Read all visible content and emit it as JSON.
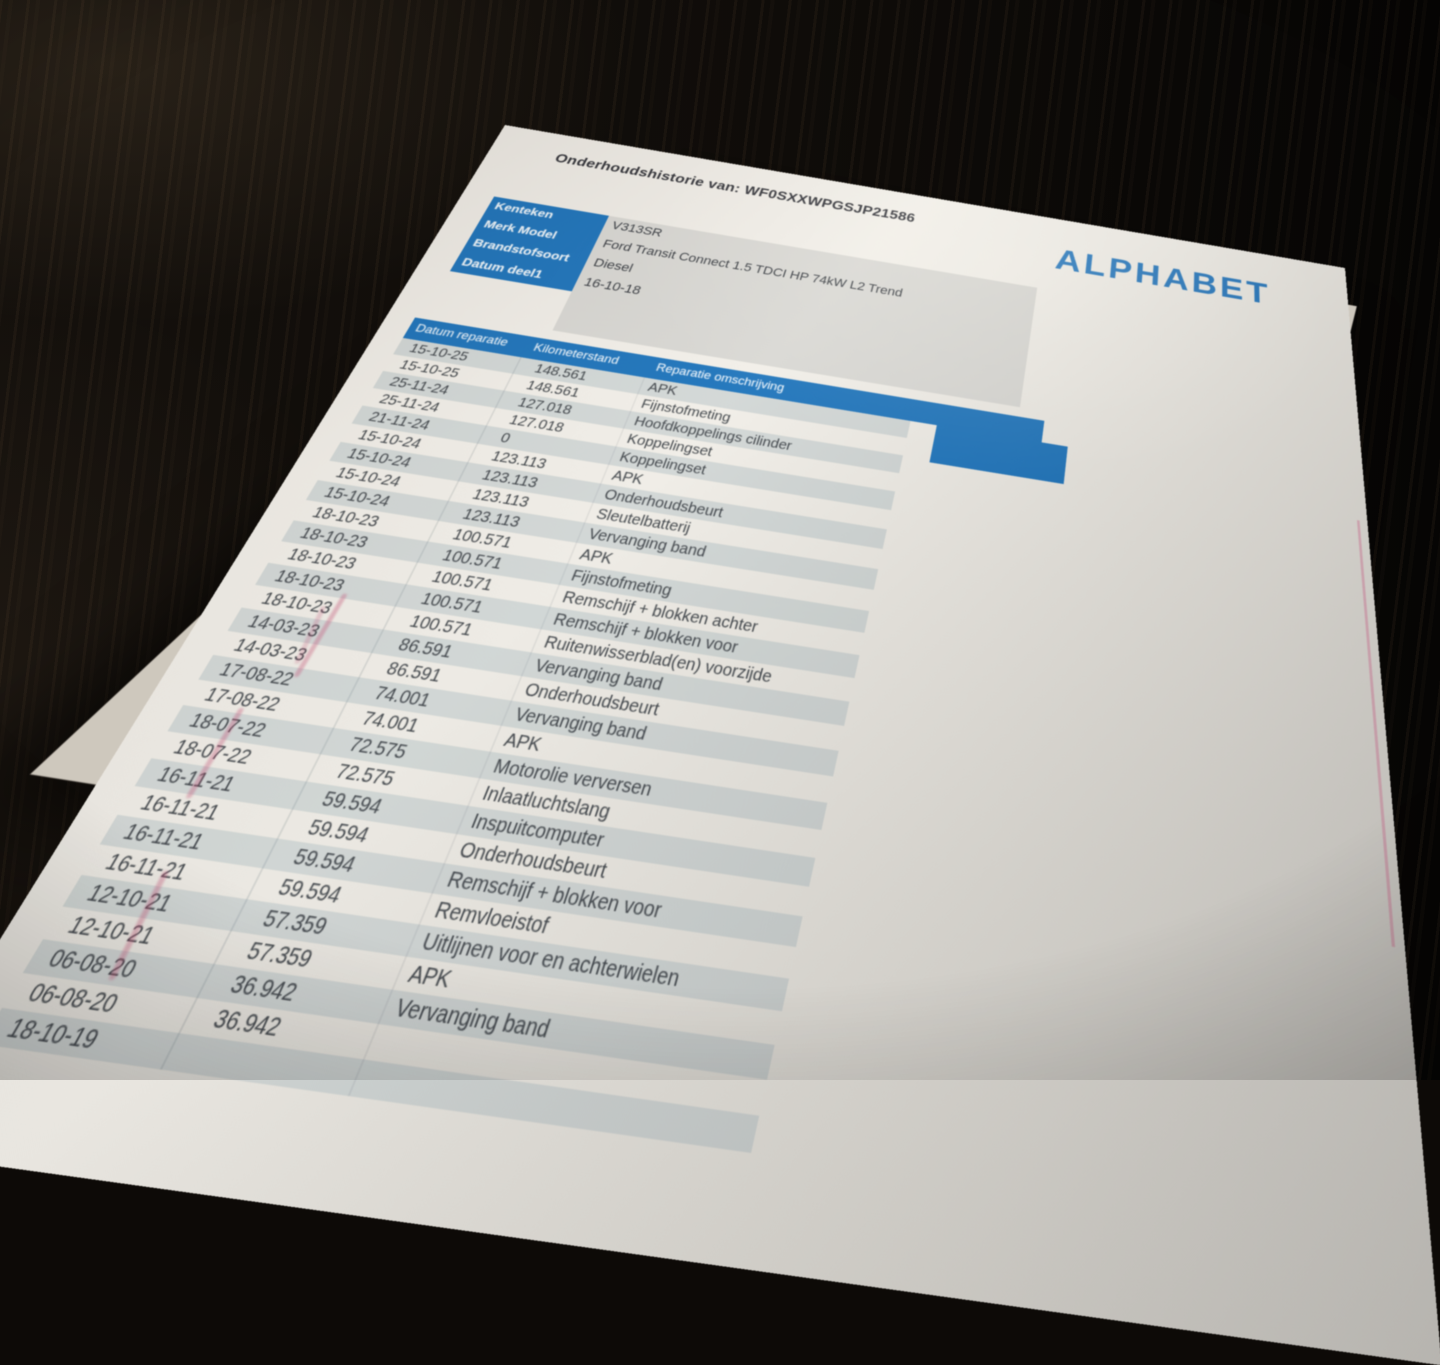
{
  "document": {
    "title": "Onderhoudshistorie van: WF0SXXWPGSJP21586",
    "brand_logo": "ALPHABET",
    "info_table": {
      "rows": [
        {
          "label": "Kenteken",
          "value": "V313SR"
        },
        {
          "label": "Merk Model",
          "value": "Ford Transit Connect 1.5 TDCI HP 74kW L2 Trend"
        },
        {
          "label": "Brandstofsoort",
          "value": "Diesel"
        },
        {
          "label": "Datum deel1",
          "value": "16-10-18"
        }
      ]
    },
    "maintenance_table": {
      "columns": [
        "Datum reparatie",
        "Kilometerstand",
        "Reparatie omschrijving"
      ],
      "rows": [
        [
          "15-10-25",
          "148.561",
          "APK"
        ],
        [
          "15-10-25",
          "148.561",
          "Fijnstofmeting"
        ],
        [
          "25-11-24",
          "127.018",
          "Hoofdkoppelings cilinder"
        ],
        [
          "25-11-24",
          "127.018",
          "Koppelingset"
        ],
        [
          "21-11-24",
          "0",
          "Koppelingset"
        ],
        [
          "15-10-24",
          "123.113",
          "APK"
        ],
        [
          "15-10-24",
          "123.113",
          "Onderhoudsbeurt"
        ],
        [
          "15-10-24",
          "123.113",
          "Sleutelbatterij"
        ],
        [
          "15-10-24",
          "123.113",
          "Vervanging band"
        ],
        [
          "18-10-23",
          "100.571",
          "APK"
        ],
        [
          "18-10-23",
          "100.571",
          "Fijnstofmeting"
        ],
        [
          "18-10-23",
          "100.571",
          "Remschijf + blokken achter"
        ],
        [
          "18-10-23",
          "100.571",
          "Remschijf + blokken voor"
        ],
        [
          "18-10-23",
          "100.571",
          "Ruitenwisserblad(en) voorzijde"
        ],
        [
          "14-03-23",
          "86.591",
          "Vervanging band"
        ],
        [
          "14-03-23",
          "86.591",
          "Onderhoudsbeurt"
        ],
        [
          "17-08-22",
          "74.001",
          "Vervanging band"
        ],
        [
          "17-08-22",
          "74.001",
          "APK"
        ],
        [
          "18-07-22",
          "72.575",
          "Motorolie verversen"
        ],
        [
          "18-07-22",
          "72.575",
          "Inlaatluchtslang"
        ],
        [
          "16-11-21",
          "59.594",
          "Inspuitcomputer"
        ],
        [
          "16-11-21",
          "59.594",
          "Onderhoudsbeurt"
        ],
        [
          "16-11-21",
          "59.594",
          "Remschijf + blokken voor"
        ],
        [
          "16-11-21",
          "59.594",
          "Remvloeistof"
        ],
        [
          "12-10-21",
          "57.359",
          "Uitlijnen voor en achterwielen"
        ],
        [
          "12-10-21",
          "57.359",
          "APK"
        ],
        [
          "06-08-20",
          "36.942",
          "Vervanging band"
        ],
        [
          "06-08-20",
          "36.942",
          ""
        ],
        [
          "18-10-19",
          "",
          ""
        ]
      ]
    },
    "colors": {
      "header_blue": "#1473c2",
      "logo_blue": "#1b76c4",
      "row_stripe": "#a8b7bf",
      "paper": "#efece5"
    }
  }
}
